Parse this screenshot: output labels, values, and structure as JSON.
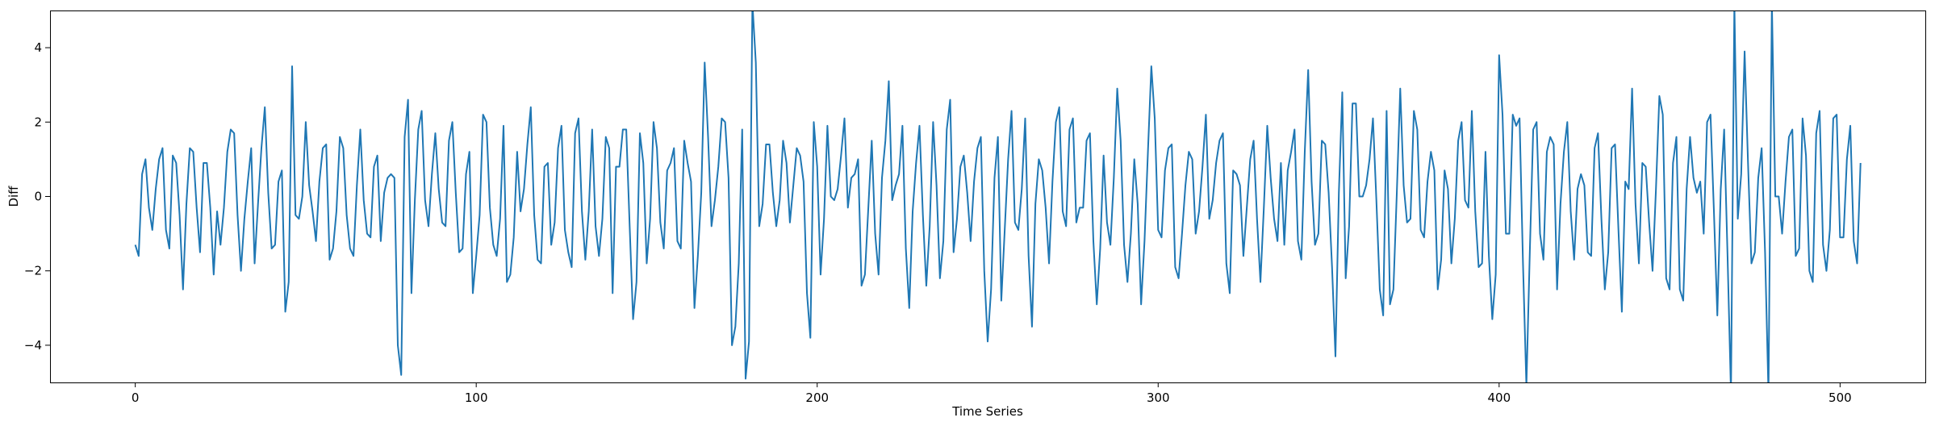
{
  "chart_data": {
    "type": "line",
    "title": "",
    "xlabel": "Time Series",
    "ylabel": "Diff",
    "xlim": [
      -25,
      525
    ],
    "ylim": [
      -5,
      5
    ],
    "xticks": [
      0,
      100,
      200,
      300,
      400,
      500
    ],
    "yticks": [
      -4,
      -2,
      0,
      2,
      4
    ],
    "xtick_labels": [
      "0",
      "100",
      "200",
      "300",
      "400",
      "500"
    ],
    "ytick_labels": [
      "−4",
      "−2",
      "0",
      "2",
      "4"
    ],
    "grid": false,
    "legend": "none",
    "line_color": "#1f77b4",
    "series": [
      {
        "values": [
          -1.3,
          -1.6,
          0.6,
          1.0,
          -0.3,
          -0.9,
          0.2,
          1.0,
          1.3,
          -0.9,
          -1.4,
          1.1,
          0.9,
          -0.5,
          -2.5,
          -0.2,
          1.3,
          1.2,
          -0.3,
          -1.5,
          0.9,
          0.9,
          -0.3,
          -2.1,
          -0.4,
          -1.3,
          -0.3,
          1.2,
          1.8,
          1.7,
          -0.5,
          -2.0,
          -0.6,
          0.4,
          1.3,
          -1.8,
          -0.2,
          1.3,
          2.4,
          0.1,
          -1.4,
          -1.3,
          0.4,
          0.7,
          -3.1,
          -2.3,
          3.5,
          -0.5,
          -0.6,
          0.0,
          2.0,
          0.3,
          -0.4,
          -1.2,
          0.4,
          1.3,
          1.4,
          -1.7,
          -1.4,
          -0.4,
          1.6,
          1.3,
          -0.5,
          -1.4,
          -1.6,
          0.3,
          1.8,
          -0.1,
          -1.0,
          -1.1,
          0.8,
          1.1,
          -1.2,
          0.1,
          0.5,
          0.6,
          0.5,
          -4.0,
          -4.8,
          1.6,
          2.6,
          -2.6,
          -0.1,
          1.8,
          2.3,
          -0.1,
          -0.8,
          0.6,
          1.7,
          0.2,
          -0.7,
          -0.8,
          1.5,
          2.0,
          0.1,
          -1.5,
          -1.4,
          0.6,
          1.2,
          -2.6,
          -1.6,
          -0.5,
          2.2,
          2.0,
          -0.3,
          -1.3,
          -1.6,
          -0.6,
          1.9,
          -2.3,
          -2.1,
          -1.1,
          1.2,
          -0.4,
          0.2,
          1.4,
          2.4,
          -0.5,
          -1.7,
          -1.8,
          0.8,
          0.9,
          -1.3,
          -0.7,
          1.3,
          1.9,
          -0.9,
          -1.5,
          -1.9,
          1.7,
          2.1,
          -0.4,
          -1.7,
          -0.4,
          1.8,
          -0.8,
          -1.6,
          -0.6,
          1.6,
          1.3,
          -2.6,
          0.8,
          0.8,
          1.8,
          1.8,
          -0.8,
          -3.3,
          -2.3,
          1.7,
          0.9,
          -1.8,
          -0.6,
          2.0,
          1.3,
          -0.7,
          -1.4,
          0.7,
          0.9,
          1.3,
          -1.2,
          -1.4,
          1.5,
          0.9,
          0.4,
          -3.0,
          -1.6,
          0.1,
          3.6,
          1.6,
          -0.8,
          -0.1,
          0.8,
          2.1,
          2.0,
          0.5,
          -4.0,
          -3.5,
          -1.8,
          1.8,
          -4.9,
          -3.9,
          5.2,
          3.6,
          -0.8,
          -0.2,
          1.4,
          1.4,
          0.1,
          -0.8,
          -0.1,
          1.5,
          0.9,
          -0.7,
          0.3,
          1.3,
          1.1,
          0.4,
          -2.6,
          -3.8,
          2.0,
          0.8,
          -2.1,
          -0.6,
          1.9,
          0.0,
          -0.1,
          0.2,
          1.1,
          2.1,
          -0.3,
          0.5,
          0.6,
          1.0,
          -2.4,
          -2.1,
          -0.3,
          1.5,
          -1.0,
          -2.1,
          0.5,
          1.5,
          3.1,
          -0.1,
          0.3,
          0.6,
          1.9,
          -1.4,
          -3.0,
          -0.4,
          0.9,
          1.9,
          -0.5,
          -2.4,
          -0.8,
          2.0,
          0.3,
          -2.2,
          -1.2,
          1.8,
          2.6,
          -1.5,
          -0.6,
          0.8,
          1.1,
          0.1,
          -1.2,
          0.4,
          1.3,
          1.6,
          -2.0,
          -3.9,
          -2.5,
          0.5,
          1.6,
          -2.8,
          -0.9,
          1.0,
          2.3,
          -0.7,
          -0.9,
          0.2,
          2.1,
          -1.6,
          -3.5,
          -0.2,
          1.0,
          0.7,
          -0.3,
          -1.8,
          0.4,
          2.0,
          2.4,
          -0.4,
          -0.8,
          1.8,
          2.1,
          -0.7,
          -0.3,
          -0.3,
          1.5,
          1.7,
          -1.2,
          -2.9,
          -1.4,
          1.1,
          -0.7,
          -1.3,
          0.5,
          2.9,
          1.5,
          -1.3,
          -2.3,
          -1.0,
          1.0,
          -0.2,
          -2.9,
          -1.2,
          1.2,
          3.5,
          2.1,
          -0.9,
          -1.1,
          0.7,
          1.3,
          1.4,
          -1.9,
          -2.2,
          -1.0,
          0.3,
          1.2,
          1.0,
          -1.0,
          -0.4,
          0.8,
          2.2,
          -0.6,
          -0.1,
          0.9,
          1.5,
          1.7,
          -1.8,
          -2.6,
          0.7,
          0.6,
          0.3,
          -1.6,
          -0.3,
          1.0,
          1.5,
          -0.6,
          -2.3,
          -0.3,
          1.9,
          0.5,
          -0.6,
          -1.2,
          0.9,
          -1.3,
          0.7,
          1.2,
          1.8,
          -1.2,
          -1.7,
          1.2,
          3.4,
          0.4,
          -1.3,
          -1.0,
          1.5,
          1.4,
          0.1,
          -1.9,
          -4.3,
          0.1,
          2.8,
          -2.2,
          -0.8,
          2.5,
          2.5,
          0.0,
          0.0,
          0.3,
          1.0,
          2.1,
          -0.1,
          -2.5,
          -3.2,
          2.3,
          -2.9,
          -2.5,
          0.1,
          2.9,
          0.3,
          -0.7,
          -0.6,
          2.3,
          1.8,
          -0.9,
          -1.1,
          0.4,
          1.2,
          0.7,
          -2.5,
          -1.7,
          0.7,
          0.2,
          -1.8,
          -0.6,
          1.5,
          2.0,
          -0.1,
          -0.3,
          2.3,
          -0.4,
          -1.9,
          -1.8,
          1.2,
          -1.6,
          -3.3,
          -2.1,
          3.8,
          2.2,
          -1.0,
          -1.0,
          2.2,
          1.9,
          2.1,
          -1.8,
          -5.1,
          -1.5,
          1.8,
          2.0,
          -1.0,
          -1.7,
          1.2,
          1.6,
          1.4,
          -2.5,
          -0.2,
          1.2,
          2.0,
          -0.4,
          -1.7,
          0.2,
          0.6,
          0.3,
          -1.5,
          -1.6,
          1.3,
          1.7,
          -0.6,
          -2.5,
          -1.5,
          1.3,
          1.4,
          -0.9,
          -3.1,
          0.4,
          0.2,
          2.9,
          -0.2,
          -1.8,
          0.9,
          0.8,
          -0.7,
          -2.0,
          0.2,
          2.7,
          2.2,
          -2.2,
          -2.5,
          0.9,
          1.6,
          -2.5,
          -2.8,
          0.2,
          1.6,
          0.5,
          0.1,
          0.4,
          -1.0,
          2.0,
          2.2,
          -0.4,
          -3.2,
          0.2,
          1.8,
          -1.6,
          -5.3,
          5.2,
          -0.6,
          0.6,
          3.9,
          0.9,
          -1.8,
          -1.5,
          0.5,
          1.3,
          -1.5,
          -5.3,
          5.2,
          0.0,
          0.0,
          -1.0,
          0.4,
          1.6,
          1.8,
          -1.6,
          -1.4,
          2.1,
          1.1,
          -2.0,
          -2.3,
          1.7,
          2.3,
          -1.3,
          -2.0,
          -0.9,
          2.1,
          2.2,
          -1.1,
          -1.1,
          1.0,
          1.9,
          -1.2,
          -1.8,
          0.9
        ]
      }
    ]
  }
}
